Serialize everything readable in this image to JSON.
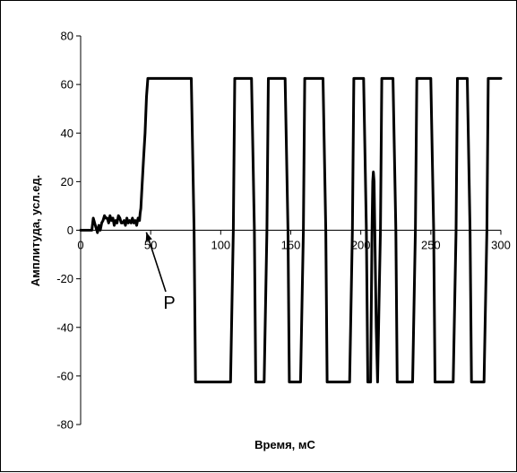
{
  "chart_data": {
    "type": "line",
    "title": "",
    "xlabel": "Время, мС",
    "ylabel": "Амплитуда, усл.ед.",
    "xlim": [
      0,
      300
    ],
    "ylim": [
      -80,
      80
    ],
    "x_ticks": [
      "0",
      "50",
      "100",
      "150",
      "200",
      "250",
      "300"
    ],
    "y_ticks": [
      "80",
      "60",
      "40",
      "20",
      "0",
      "-20",
      "-40",
      "-60",
      "-80"
    ],
    "grid": false,
    "legend": "none",
    "line_color": "#000000",
    "series": [
      {
        "x": [
          0,
          8,
          9,
          10,
          11,
          12,
          13,
          14,
          15,
          16,
          17,
          18,
          19,
          20,
          21,
          22,
          23,
          24,
          25,
          26,
          27,
          28,
          29,
          30,
          31,
          32,
          33,
          34,
          35,
          36,
          37,
          38,
          39,
          40,
          41,
          42,
          42.5,
          43,
          44,
          45,
          46,
          47,
          48,
          50,
          79,
          81,
          82,
          107,
          109,
          110,
          122,
          124,
          125,
          131,
          133,
          134,
          146,
          148,
          149,
          157,
          159,
          160,
          173,
          175,
          176,
          192,
          194,
          195,
          202,
          204,
          205,
          207,
          208,
          208.5,
          209,
          209.5,
          210,
          211,
          212,
          213,
          214,
          215,
          223,
          225,
          226,
          237,
          239,
          240,
          250,
          252,
          253,
          266,
          268,
          269,
          276,
          278,
          279,
          288,
          290,
          291,
          300
        ],
        "y": [
          0,
          0,
          5,
          3,
          1,
          -1,
          2,
          0,
          3,
          4,
          6,
          5,
          5,
          3,
          6,
          4,
          5,
          2,
          4,
          3,
          6,
          5,
          3,
          3,
          4,
          2,
          5,
          3,
          4,
          3,
          5,
          3,
          4,
          2,
          5,
          4,
          7,
          9,
          20,
          30,
          40,
          55,
          62.5,
          62.5,
          62.5,
          0,
          -62.5,
          -62.5,
          0,
          62.5,
          62.5,
          0,
          -62.5,
          -62.5,
          0,
          62.5,
          62.5,
          0,
          -62.5,
          -62.5,
          0,
          62.5,
          62.5,
          0,
          -62.5,
          -62.5,
          0,
          62.5,
          62.5,
          0,
          -62.5,
          -62.5,
          0,
          20,
          24,
          20,
          0,
          -40,
          -62.5,
          -30,
          0,
          62.5,
          62.5,
          0,
          -62.5,
          -62.5,
          0,
          62.5,
          62.5,
          0,
          -62.5,
          -62.5,
          0,
          62.5,
          62.5,
          0,
          -62.5,
          -62.5,
          0,
          62.5,
          62.5
        ]
      }
    ],
    "annotations": [
      {
        "text": "Р",
        "x": 45,
        "y": 1
      }
    ]
  }
}
